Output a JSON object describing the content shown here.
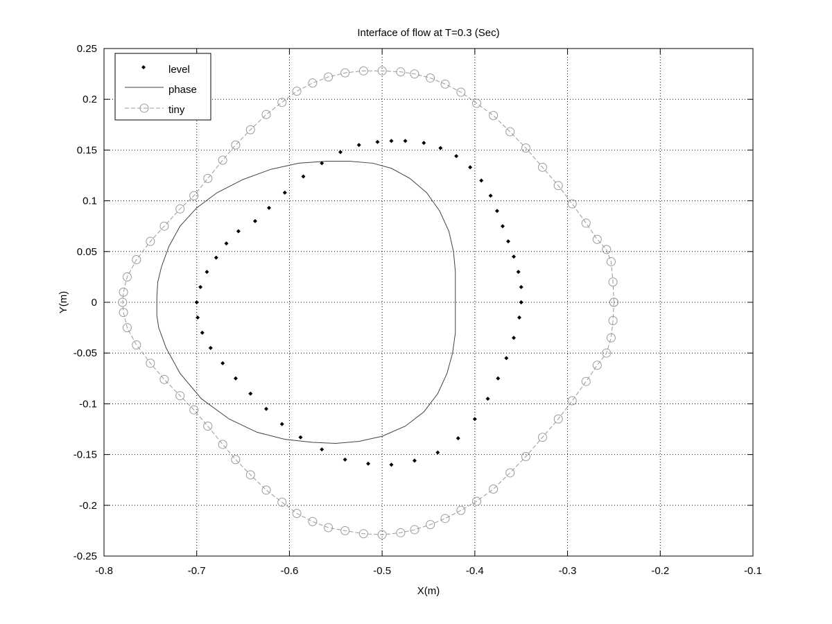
{
  "chart_data": {
    "type": "line",
    "title": "Interface of flow at T=0.3 (Sec)",
    "xlabel": "X(m)",
    "ylabel": "Y(m)",
    "xlim": [
      -0.8,
      -0.1
    ],
    "ylim": [
      -0.25,
      0.25
    ],
    "xticks": [
      -0.8,
      -0.7,
      -0.6,
      -0.5,
      -0.4,
      -0.3,
      -0.2,
      -0.1
    ],
    "yticks": [
      -0.25,
      -0.2,
      -0.15,
      -0.1,
      -0.05,
      0,
      0.05,
      0.1,
      0.15,
      0.2,
      0.25
    ],
    "xtick_labels": [
      "-0.8",
      "-0.7",
      "-0.6",
      "-0.5",
      "-0.4",
      "-0.3",
      "-0.2",
      "-0.1"
    ],
    "ytick_labels": [
      "-0.25",
      "-0.2",
      "-0.15",
      "-0.1",
      "-0.05",
      "0",
      "0.05",
      "0.1",
      "0.15",
      "0.2",
      "0.25"
    ],
    "grid": true,
    "legend_position": "top-left",
    "series": [
      {
        "name": "level",
        "style": "dots",
        "color": "#000000",
        "points": [
          [
            -0.35,
            0.0
          ],
          [
            -0.35,
            0.015
          ],
          [
            -0.353,
            0.03
          ],
          [
            -0.358,
            0.045
          ],
          [
            -0.364,
            0.06
          ],
          [
            -0.37,
            0.075
          ],
          [
            -0.376,
            0.09
          ],
          [
            -0.383,
            0.105
          ],
          [
            -0.393,
            0.12
          ],
          [
            -0.405,
            0.133
          ],
          [
            -0.42,
            0.144
          ],
          [
            -0.437,
            0.152
          ],
          [
            -0.455,
            0.157
          ],
          [
            -0.475,
            0.159
          ],
          [
            -0.49,
            0.159
          ],
          [
            -0.505,
            0.158
          ],
          [
            -0.525,
            0.155
          ],
          [
            -0.545,
            0.148
          ],
          [
            -0.565,
            0.137
          ],
          [
            -0.585,
            0.124
          ],
          [
            -0.605,
            0.108
          ],
          [
            -0.622,
            0.093
          ],
          [
            -0.637,
            0.08
          ],
          [
            -0.655,
            0.07
          ],
          [
            -0.668,
            0.058
          ],
          [
            -0.679,
            0.044
          ],
          [
            -0.689,
            0.03
          ],
          [
            -0.696,
            0.015
          ],
          [
            -0.7,
            0.0
          ],
          [
            -0.699,
            -0.015
          ],
          [
            -0.694,
            -0.03
          ],
          [
            -0.685,
            -0.045
          ],
          [
            -0.672,
            -0.06
          ],
          [
            -0.658,
            -0.075
          ],
          [
            -0.642,
            -0.09
          ],
          [
            -0.625,
            -0.105
          ],
          [
            -0.608,
            -0.12
          ],
          [
            -0.588,
            -0.133
          ],
          [
            -0.565,
            -0.145
          ],
          [
            -0.54,
            -0.155
          ],
          [
            -0.515,
            -0.159
          ],
          [
            -0.49,
            -0.16
          ],
          [
            -0.465,
            -0.156
          ],
          [
            -0.44,
            -0.148
          ],
          [
            -0.418,
            -0.134
          ],
          [
            -0.4,
            -0.115
          ],
          [
            -0.386,
            -0.095
          ],
          [
            -0.375,
            -0.075
          ],
          [
            -0.366,
            -0.055
          ],
          [
            -0.358,
            -0.035
          ],
          [
            -0.352,
            -0.015
          ],
          [
            -0.35,
            0.0
          ]
        ]
      },
      {
        "name": "phase",
        "style": "line",
        "color": "#404040",
        "points": [
          [
            -0.743,
            -0.013
          ],
          [
            -0.743,
            0.005
          ],
          [
            -0.742,
            0.02
          ],
          [
            -0.738,
            0.035
          ],
          [
            -0.73,
            0.055
          ],
          [
            -0.718,
            0.075
          ],
          [
            -0.7,
            0.093
          ],
          [
            -0.678,
            0.108
          ],
          [
            -0.65,
            0.121
          ],
          [
            -0.62,
            0.131
          ],
          [
            -0.59,
            0.137
          ],
          [
            -0.56,
            0.139
          ],
          [
            -0.535,
            0.139
          ],
          [
            -0.51,
            0.137
          ],
          [
            -0.49,
            0.132
          ],
          [
            -0.47,
            0.122
          ],
          [
            -0.452,
            0.108
          ],
          [
            -0.438,
            0.09
          ],
          [
            -0.428,
            0.07
          ],
          [
            -0.423,
            0.05
          ],
          [
            -0.421,
            0.03
          ],
          [
            -0.421,
            0.0
          ],
          [
            -0.421,
            -0.03
          ],
          [
            -0.424,
            -0.05
          ],
          [
            -0.43,
            -0.07
          ],
          [
            -0.44,
            -0.09
          ],
          [
            -0.455,
            -0.108
          ],
          [
            -0.475,
            -0.122
          ],
          [
            -0.5,
            -0.132
          ],
          [
            -0.525,
            -0.137
          ],
          [
            -0.55,
            -0.139
          ],
          [
            -0.575,
            -0.138
          ],
          [
            -0.605,
            -0.135
          ],
          [
            -0.635,
            -0.128
          ],
          [
            -0.665,
            -0.115
          ],
          [
            -0.695,
            -0.095
          ],
          [
            -0.718,
            -0.07
          ],
          [
            -0.733,
            -0.045
          ],
          [
            -0.741,
            -0.025
          ],
          [
            -0.743,
            -0.013
          ]
        ]
      },
      {
        "name": "tiny",
        "style": "line-circles",
        "color": "#999999",
        "points": [
          [
            -0.25,
            0.0
          ],
          [
            -0.251,
            0.02
          ],
          [
            -0.253,
            0.04
          ],
          [
            -0.258,
            0.052
          ],
          [
            -0.268,
            0.062
          ],
          [
            -0.28,
            0.078
          ],
          [
            -0.295,
            0.097
          ],
          [
            -0.31,
            0.115
          ],
          [
            -0.327,
            0.133
          ],
          [
            -0.345,
            0.152
          ],
          [
            -0.362,
            0.168
          ],
          [
            -0.38,
            0.184
          ],
          [
            -0.398,
            0.196
          ],
          [
            -0.415,
            0.207
          ],
          [
            -0.432,
            0.215
          ],
          [
            -0.448,
            0.221
          ],
          [
            -0.465,
            0.225
          ],
          [
            -0.48,
            0.227
          ],
          [
            -0.5,
            0.228
          ],
          [
            -0.52,
            0.228
          ],
          [
            -0.54,
            0.226
          ],
          [
            -0.558,
            0.222
          ],
          [
            -0.575,
            0.216
          ],
          [
            -0.592,
            0.208
          ],
          [
            -0.608,
            0.197
          ],
          [
            -0.625,
            0.185
          ],
          [
            -0.642,
            0.17
          ],
          [
            -0.658,
            0.155
          ],
          [
            -0.672,
            0.14
          ],
          [
            -0.688,
            0.122
          ],
          [
            -0.703,
            0.105
          ],
          [
            -0.718,
            0.092
          ],
          [
            -0.735,
            0.075
          ],
          [
            -0.75,
            0.06
          ],
          [
            -0.765,
            0.042
          ],
          [
            -0.775,
            0.025
          ],
          [
            -0.779,
            0.01
          ],
          [
            -0.78,
            0.0
          ],
          [
            -0.779,
            -0.01
          ],
          [
            -0.775,
            -0.025
          ],
          [
            -0.765,
            -0.042
          ],
          [
            -0.75,
            -0.06
          ],
          [
            -0.735,
            -0.076
          ],
          [
            -0.718,
            -0.092
          ],
          [
            -0.703,
            -0.106
          ],
          [
            -0.688,
            -0.122
          ],
          [
            -0.672,
            -0.14
          ],
          [
            -0.658,
            -0.155
          ],
          [
            -0.642,
            -0.17
          ],
          [
            -0.625,
            -0.185
          ],
          [
            -0.608,
            -0.197
          ],
          [
            -0.592,
            -0.208
          ],
          [
            -0.575,
            -0.216
          ],
          [
            -0.558,
            -0.222
          ],
          [
            -0.54,
            -0.225
          ],
          [
            -0.52,
            -0.228
          ],
          [
            -0.5,
            -0.229
          ],
          [
            -0.48,
            -0.227
          ],
          [
            -0.465,
            -0.224
          ],
          [
            -0.448,
            -0.219
          ],
          [
            -0.432,
            -0.213
          ],
          [
            -0.415,
            -0.205
          ],
          [
            -0.398,
            -0.196
          ],
          [
            -0.38,
            -0.184
          ],
          [
            -0.362,
            -0.168
          ],
          [
            -0.345,
            -0.152
          ],
          [
            -0.327,
            -0.133
          ],
          [
            -0.31,
            -0.115
          ],
          [
            -0.295,
            -0.097
          ],
          [
            -0.28,
            -0.078
          ],
          [
            -0.268,
            -0.062
          ],
          [
            -0.258,
            -0.05
          ],
          [
            -0.253,
            -0.035
          ],
          [
            -0.251,
            -0.018
          ],
          [
            -0.25,
            0.0
          ]
        ]
      }
    ]
  }
}
